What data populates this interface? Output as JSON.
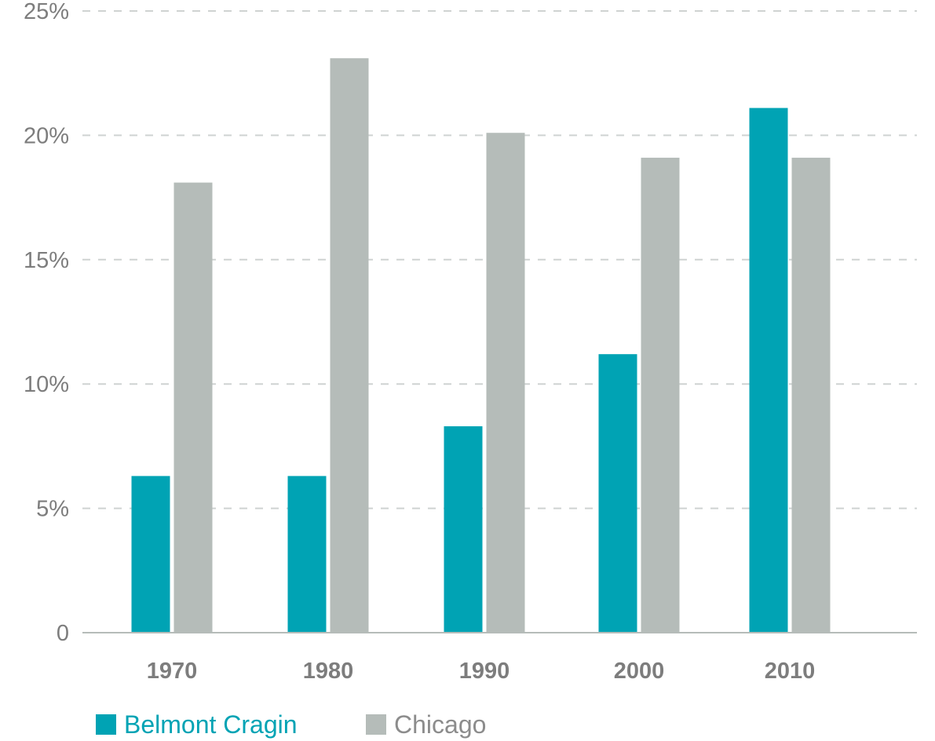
{
  "chart_data": {
    "type": "bar",
    "categories": [
      "1970",
      "1980",
      "1990",
      "2000",
      "2010"
    ],
    "series": [
      {
        "name": "Belmont Cragin",
        "values": [
          6.3,
          6.3,
          8.3,
          11.2,
          21.1
        ],
        "color": "#00a3b4"
      },
      {
        "name": "Chicago",
        "values": [
          18.1,
          23.1,
          20.1,
          19.1,
          19.1
        ],
        "color": "#b5bcb9"
      }
    ],
    "ylim": [
      0,
      25
    ],
    "yticks": [
      0,
      5,
      10,
      15,
      20,
      25
    ],
    "ytick_labels": [
      "0",
      "5%",
      "10%",
      "15%",
      "20%",
      "25%"
    ],
    "xlabel": "",
    "ylabel": "",
    "title": "",
    "grid": true,
    "grid_style": "dashed",
    "legend_position": "bottom-left",
    "colors": {
      "tick_text": "#7d7d7d",
      "grid": "#cfd3d2",
      "baseline": "#b5bcb9"
    }
  }
}
